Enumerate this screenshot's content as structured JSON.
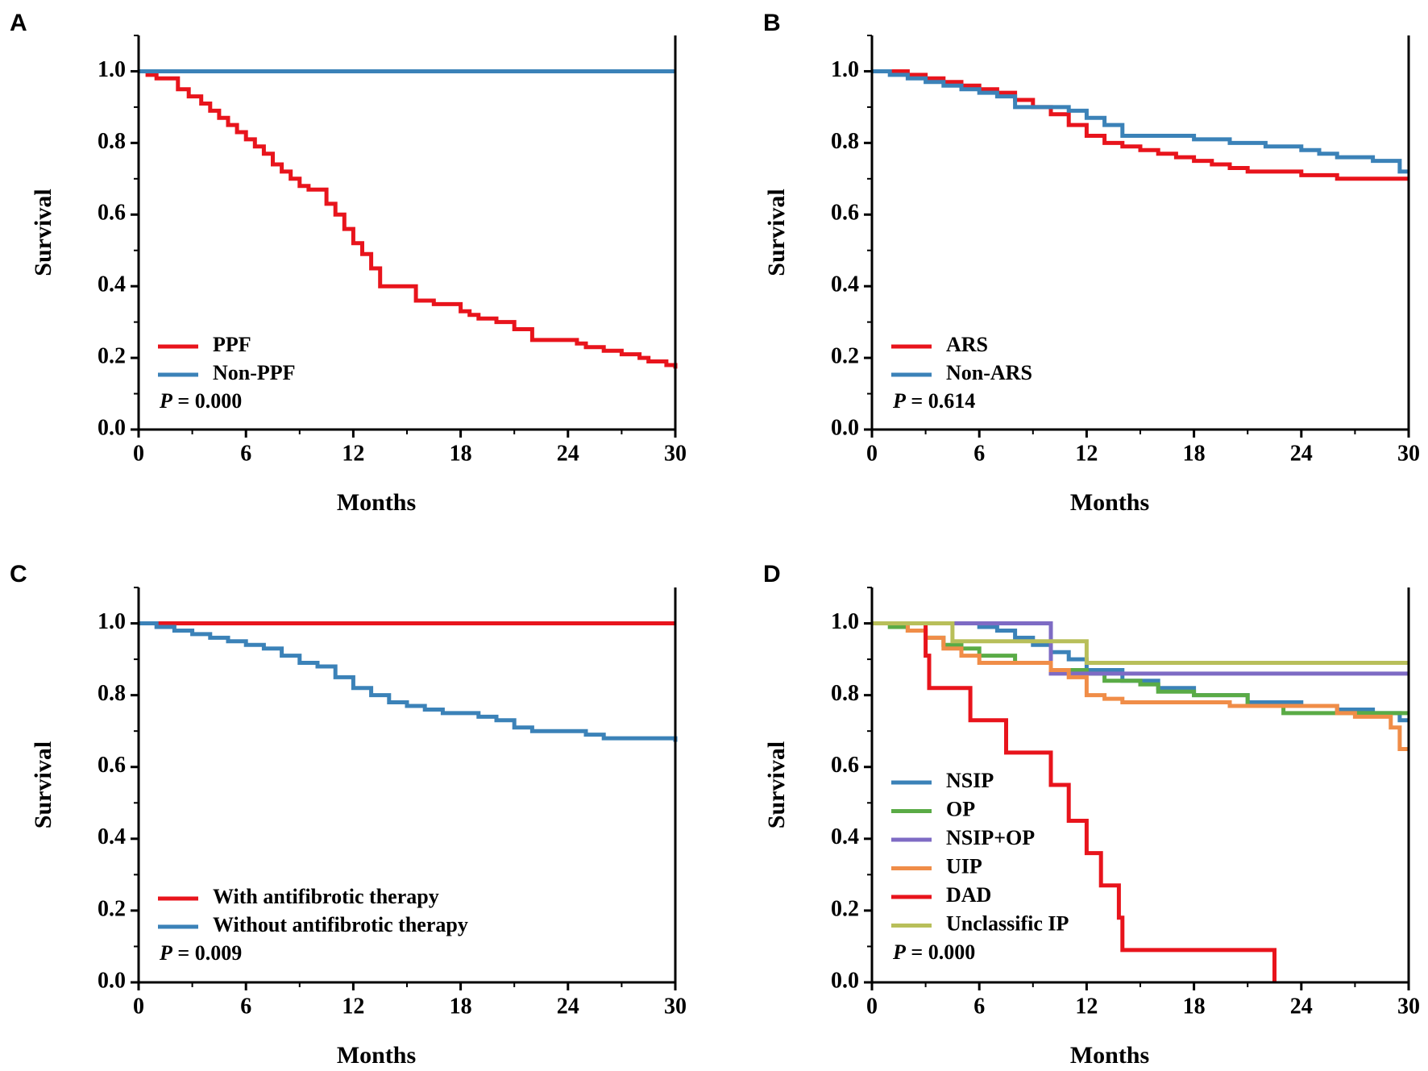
{
  "colors": {
    "red": "#e8141c",
    "blue": "#3b82b8",
    "green": "#5aab46",
    "purple": "#7e6bc4",
    "orange": "#f08d48",
    "olive": "#b8bf5a"
  },
  "chart_data": [
    {
      "panel": "A",
      "type": "line",
      "step": true,
      "xlabel": "Months",
      "ylabel": "Survival",
      "xlim": [
        0,
        30
      ],
      "ylim": [
        0,
        1.1
      ],
      "xticks": [
        "0",
        "6",
        "12",
        "18",
        "24",
        "30"
      ],
      "yticks": [
        "0.0",
        "0.2",
        "0.4",
        "0.6",
        "0.8",
        "1.0"
      ],
      "legend_position": "bottom-left",
      "pvalue": {
        "prefix": "P",
        "text": " = 0.000"
      },
      "series": [
        {
          "name": "PPF",
          "color": "red",
          "x": [
            0,
            0.5,
            1,
            2.2,
            2.8,
            3.5,
            4,
            4.5,
            5,
            5.5,
            6,
            6.5,
            7,
            7.5,
            8,
            8.5,
            9,
            9.5,
            10.5,
            11,
            11.5,
            12,
            12.5,
            13,
            13.5,
            15.5,
            16.5,
            18,
            18.5,
            19,
            20,
            21,
            22,
            24.5,
            25,
            26,
            27,
            28,
            28.5,
            29.5,
            30
          ],
          "y": [
            1.0,
            0.99,
            0.98,
            0.95,
            0.93,
            0.91,
            0.89,
            0.87,
            0.85,
            0.83,
            0.81,
            0.79,
            0.77,
            0.74,
            0.72,
            0.7,
            0.68,
            0.67,
            0.63,
            0.6,
            0.56,
            0.52,
            0.49,
            0.45,
            0.4,
            0.36,
            0.35,
            0.33,
            0.32,
            0.31,
            0.3,
            0.28,
            0.25,
            0.24,
            0.23,
            0.22,
            0.21,
            0.2,
            0.19,
            0.18,
            0.17
          ]
        },
        {
          "name": "Non-PPF",
          "color": "blue",
          "x": [
            0,
            30
          ],
          "y": [
            1.0,
            1.0
          ]
        }
      ]
    },
    {
      "panel": "B",
      "type": "line",
      "step": true,
      "xlabel": "Months",
      "ylabel": "Survival",
      "xlim": [
        0,
        30
      ],
      "ylim": [
        0,
        1.1
      ],
      "xticks": [
        "0",
        "6",
        "12",
        "18",
        "24",
        "30"
      ],
      "yticks": [
        "0.0",
        "0.2",
        "0.4",
        "0.6",
        "0.8",
        "1.0"
      ],
      "legend_position": "bottom-left",
      "pvalue": {
        "prefix": "P",
        "text": " = 0.614"
      },
      "series": [
        {
          "name": "ARS",
          "color": "red",
          "x": [
            0,
            2,
            3,
            4,
            5,
            6,
            7,
            8,
            9,
            10,
            11,
            12,
            13,
            14,
            15,
            16,
            17,
            18,
            19,
            20,
            21,
            22,
            24,
            25,
            26,
            27,
            30
          ],
          "y": [
            1.0,
            0.99,
            0.98,
            0.97,
            0.96,
            0.95,
            0.94,
            0.92,
            0.9,
            0.88,
            0.85,
            0.82,
            0.8,
            0.79,
            0.78,
            0.77,
            0.76,
            0.75,
            0.74,
            0.73,
            0.72,
            0.72,
            0.71,
            0.71,
            0.7,
            0.7,
            0.7
          ]
        },
        {
          "name": "Non-ARS",
          "color": "blue",
          "x": [
            0,
            1,
            2,
            3,
            4,
            5,
            6,
            7,
            8,
            10,
            11,
            12,
            13,
            14,
            18,
            20,
            22,
            24,
            25,
            26,
            28,
            29.5,
            30
          ],
          "y": [
            1.0,
            0.99,
            0.98,
            0.97,
            0.96,
            0.95,
            0.94,
            0.93,
            0.9,
            0.9,
            0.89,
            0.87,
            0.85,
            0.82,
            0.81,
            0.8,
            0.79,
            0.78,
            0.77,
            0.76,
            0.75,
            0.72,
            0.72
          ]
        }
      ]
    },
    {
      "panel": "C",
      "type": "line",
      "step": true,
      "xlabel": "Months",
      "ylabel": "Survival",
      "xlim": [
        0,
        30
      ],
      "ylim": [
        0,
        1.1
      ],
      "xticks": [
        "0",
        "6",
        "12",
        "18",
        "24",
        "30"
      ],
      "yticks": [
        "0.0",
        "0.2",
        "0.4",
        "0.6",
        "0.8",
        "1.0"
      ],
      "legend_position": "bottom-left",
      "pvalue": {
        "prefix": "P",
        "text": " = 0.009"
      },
      "series": [
        {
          "name": "With antifibrotic therapy",
          "color": "red",
          "x": [
            0,
            30
          ],
          "y": [
            1.0,
            1.0
          ]
        },
        {
          "name": "Without antifibrotic therapy",
          "color": "blue",
          "x": [
            0,
            1,
            2,
            3,
            4,
            5,
            6,
            7,
            8,
            9,
            10,
            11,
            12,
            13,
            14,
            15,
            16,
            17,
            18,
            19,
            20,
            21,
            22,
            24,
            25,
            26,
            27,
            28,
            30
          ],
          "y": [
            1.0,
            0.99,
            0.98,
            0.97,
            0.96,
            0.95,
            0.94,
            0.93,
            0.91,
            0.89,
            0.88,
            0.85,
            0.82,
            0.8,
            0.78,
            0.77,
            0.76,
            0.75,
            0.75,
            0.74,
            0.73,
            0.71,
            0.7,
            0.7,
            0.69,
            0.68,
            0.68,
            0.68,
            0.67
          ]
        }
      ]
    },
    {
      "panel": "D",
      "type": "line",
      "step": true,
      "xlabel": "Months",
      "ylabel": "Survival",
      "xlim": [
        0,
        30
      ],
      "ylim": [
        0,
        1.1
      ],
      "xticks": [
        "0",
        "6",
        "12",
        "18",
        "24",
        "30"
      ],
      "yticks": [
        "0.0",
        "0.2",
        "0.4",
        "0.6",
        "0.8",
        "1.0"
      ],
      "legend_position": "bottom-left",
      "pvalue": {
        "prefix": "P",
        "text": " = 0.000"
      },
      "series": [
        {
          "name": "NSIP",
          "color": "blue",
          "x": [
            0,
            6,
            7,
            8,
            9,
            10,
            11,
            12,
            14,
            16,
            18,
            21,
            24,
            26,
            28,
            29.5,
            30
          ],
          "y": [
            1.0,
            0.99,
            0.98,
            0.96,
            0.94,
            0.92,
            0.9,
            0.87,
            0.84,
            0.82,
            0.8,
            0.78,
            0.77,
            0.76,
            0.75,
            0.73,
            0.73
          ]
        },
        {
          "name": "OP",
          "color": "green",
          "x": [
            0,
            1,
            2,
            3,
            4,
            5,
            6,
            8,
            10,
            12,
            13,
            15,
            16,
            18,
            21,
            23,
            24,
            30
          ],
          "y": [
            1.0,
            0.99,
            0.98,
            0.96,
            0.94,
            0.93,
            0.91,
            0.89,
            0.87,
            0.86,
            0.84,
            0.83,
            0.81,
            0.8,
            0.77,
            0.75,
            0.75,
            0.75
          ]
        },
        {
          "name": "NSIP+OP",
          "color": "purple",
          "x": [
            0,
            10,
            30
          ],
          "y": [
            1.0,
            0.86,
            0.86
          ]
        },
        {
          "name": "UIP",
          "color": "orange",
          "x": [
            0,
            2,
            3,
            4,
            5,
            6,
            10,
            11,
            12,
            13,
            14,
            19,
            20,
            26,
            27,
            29,
            29.5,
            30
          ],
          "y": [
            1.0,
            0.98,
            0.96,
            0.93,
            0.91,
            0.89,
            0.87,
            0.85,
            0.8,
            0.79,
            0.78,
            0.78,
            0.77,
            0.75,
            0.74,
            0.71,
            0.65,
            0.65
          ]
        },
        {
          "name": "DAD",
          "color": "red",
          "x": [
            0,
            3,
            3.2,
            5.5,
            7.5,
            10,
            11,
            12,
            12.8,
            13.8,
            14,
            22.5
          ],
          "y": [
            1.0,
            0.91,
            0.82,
            0.73,
            0.64,
            0.55,
            0.45,
            0.36,
            0.27,
            0.18,
            0.09,
            0.0
          ]
        },
        {
          "name": "Unclassific IP",
          "color": "olive",
          "x": [
            0,
            4.5,
            12,
            30
          ],
          "y": [
            1.0,
            0.95,
            0.89,
            0.89
          ]
        }
      ]
    }
  ]
}
